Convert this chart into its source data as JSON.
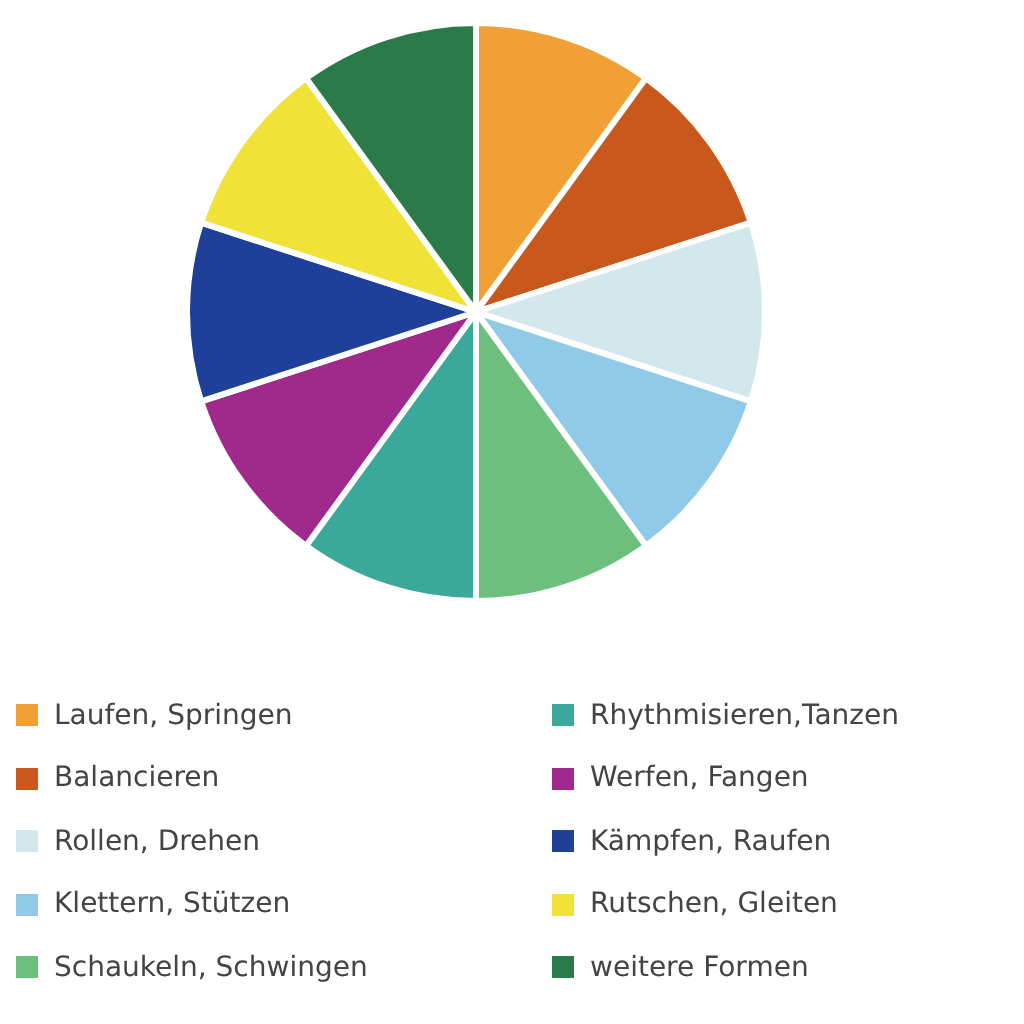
{
  "chart_data": {
    "type": "pie",
    "categories": [
      "Laufen, Springen",
      "Balancieren",
      "Rollen, Drehen",
      "Klettern, Stützen",
      "Schaukeln, Schwingen",
      "Rhythmisieren,Tanzen",
      "Werfen, Fangen",
      "Kämpfen, Raufen",
      "Rutschen, Gleiten",
      "weitere Formen"
    ],
    "values": [
      10,
      10,
      10,
      10,
      10,
      10,
      10,
      10,
      10,
      10
    ],
    "colors": [
      "#f0a035",
      "#c8581c",
      "#d2e8ec",
      "#90cae8",
      "#6cbf7c",
      "#3aa89a",
      "#a02a8c",
      "#1f4099",
      "#f0e236",
      "#2a7a4a"
    ],
    "legend": "bottom"
  }
}
